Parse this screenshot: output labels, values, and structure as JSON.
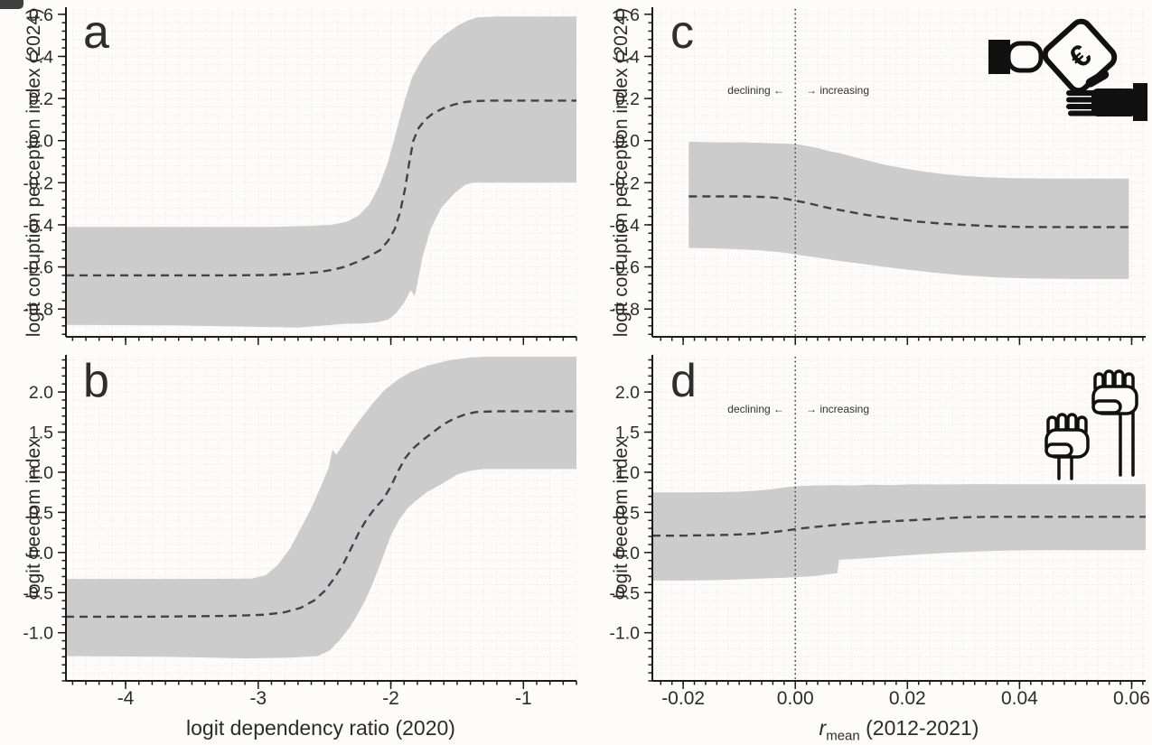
{
  "figure": {
    "background": "#fdfcfb",
    "band_color": "#c9c9c9",
    "median_color": "#42424c",
    "grid_color": "#e7e2de",
    "spine_color": "#1b1b1b",
    "text_color": "#2b2b2b"
  },
  "axes": {
    "y_title_top": "logit corruption perception index (2024)",
    "y_title_bottom": "logit freedom index",
    "x_title_left": "logit dependency ratio (2020)",
    "x_title_right": {
      "var": "r",
      "sub": "mean",
      "rest": " (2012-2021)"
    }
  },
  "annotations": {
    "left": "declining ←",
    "right": "→ increasing"
  },
  "icons": {
    "panel_c": "bribe-hands-euro-icon",
    "panel_d": "raised-fists-icon"
  },
  "chart_data": [
    {
      "id": "a",
      "panel_label": "a",
      "type": "line-with-band",
      "ylabel": "logit corruption perception index (2024)",
      "xlabel": "logit dependency ratio (2020)",
      "xlim": [
        -4.45,
        -0.6
      ],
      "ylim": [
        -0.932,
        0.625
      ],
      "xticks": [
        -4,
        -3,
        -2,
        -1
      ],
      "xtick_labels": [],
      "yticks": [
        0.6,
        0.4,
        0.2,
        0.0,
        -0.2,
        -0.4,
        -0.6,
        -0.8
      ],
      "ytick_labels": [
        "0.6",
        "0.4",
        "0.2",
        "0.0",
        "-0.2",
        "-0.4",
        "-0.6",
        "-0.8"
      ],
      "x_minor": 0.1,
      "y_minor": 0.04,
      "vline_x": null,
      "median": {
        "x": [
          -4.45,
          -3.8,
          -3.2,
          -2.9,
          -2.7,
          -2.55,
          -2.45,
          -2.35,
          -2.25,
          -2.15,
          -2.08,
          -2.02,
          -1.97,
          -1.93,
          -1.89,
          -1.86,
          -1.83,
          -1.79,
          -1.74,
          -1.68,
          -1.6,
          -1.52,
          -1.44,
          -1.36,
          -1.25,
          -1.0,
          -0.6
        ],
        "y": [
          -0.64,
          -0.64,
          -0.64,
          -0.638,
          -0.633,
          -0.625,
          -0.615,
          -0.6,
          -0.575,
          -0.545,
          -0.52,
          -0.475,
          -0.42,
          -0.34,
          -0.22,
          -0.1,
          0.0,
          0.06,
          0.1,
          0.13,
          0.155,
          0.172,
          0.183,
          0.188,
          0.19,
          0.19,
          0.19
        ]
      },
      "band_upper": {
        "x": [
          -4.45,
          -3.5,
          -2.9,
          -2.6,
          -2.45,
          -2.33,
          -2.24,
          -2.16,
          -2.09,
          -2.02,
          -1.96,
          -1.9,
          -1.84,
          -1.77,
          -1.69,
          -1.6,
          -1.5,
          -1.42,
          -1.35,
          -1.2,
          -0.9,
          -0.6
        ],
        "y": [
          -0.41,
          -0.41,
          -0.41,
          -0.405,
          -0.4,
          -0.385,
          -0.355,
          -0.3,
          -0.22,
          -0.1,
          0.04,
          0.18,
          0.3,
          0.38,
          0.45,
          0.5,
          0.545,
          0.57,
          0.585,
          0.59,
          0.59,
          0.59
        ]
      },
      "band_lower": {
        "x": [
          -4.45,
          -3.6,
          -3.0,
          -2.7,
          -2.5,
          -2.35,
          -2.2,
          -2.1,
          -2.02,
          -1.96,
          -1.9,
          -1.85,
          -1.82,
          -1.76,
          -1.7,
          -1.62,
          -1.52,
          -1.44,
          -1.38,
          -1.1,
          -0.6
        ],
        "y": [
          -0.875,
          -0.878,
          -0.885,
          -0.888,
          -0.878,
          -0.87,
          -0.868,
          -0.862,
          -0.85,
          -0.82,
          -0.77,
          -0.71,
          -0.74,
          -0.55,
          -0.42,
          -0.32,
          -0.25,
          -0.21,
          -0.2,
          -0.2,
          -0.2
        ]
      }
    },
    {
      "id": "b",
      "panel_label": "b",
      "type": "line-with-band",
      "ylabel": "logit freedom index",
      "xlabel": "logit dependency ratio (2020)",
      "xlim": [
        -4.45,
        -0.6
      ],
      "ylim": [
        -1.6,
        2.44
      ],
      "xticks": [
        -4,
        -3,
        -2,
        -1
      ],
      "xtick_labels": [
        "-4",
        "-3",
        "-2",
        "-1"
      ],
      "yticks": [
        2.0,
        1.5,
        1.0,
        0.5,
        0.0,
        -0.5,
        -1.0
      ],
      "ytick_labels": [
        "2.0",
        "1.5",
        "1.0",
        "0.5",
        "0.0",
        "-0.5",
        "-1.0"
      ],
      "x_minor": 0.1,
      "y_minor": 0.1,
      "vline_x": null,
      "median": {
        "x": [
          -4.45,
          -3.8,
          -3.2,
          -2.95,
          -2.8,
          -2.68,
          -2.58,
          -2.5,
          -2.43,
          -2.36,
          -2.3,
          -2.24,
          -2.18,
          -2.12,
          -2.06,
          -2.0,
          -1.95,
          -1.89,
          -1.83,
          -1.76,
          -1.68,
          -1.6,
          -1.52,
          -1.44,
          -1.36,
          -1.2,
          -0.9,
          -0.6
        ],
        "y": [
          -0.8,
          -0.8,
          -0.79,
          -0.775,
          -0.745,
          -0.69,
          -0.6,
          -0.48,
          -0.33,
          -0.15,
          0.05,
          0.25,
          0.42,
          0.55,
          0.66,
          0.82,
          1.0,
          1.18,
          1.3,
          1.4,
          1.5,
          1.6,
          1.67,
          1.72,
          1.75,
          1.76,
          1.76,
          1.76
        ]
      },
      "band_upper": {
        "x": [
          -4.45,
          -3.6,
          -3.05,
          -2.94,
          -2.85,
          -2.76,
          -2.68,
          -2.6,
          -2.52,
          -2.47,
          -2.44,
          -2.41,
          -2.37,
          -2.3,
          -2.22,
          -2.14,
          -2.05,
          -1.95,
          -1.85,
          -1.72,
          -1.55,
          -1.4,
          -1.28,
          -1.0,
          -0.6
        ],
        "y": [
          -0.33,
          -0.33,
          -0.325,
          -0.28,
          -0.15,
          0.05,
          0.3,
          0.55,
          0.85,
          1.05,
          1.28,
          1.22,
          1.32,
          1.5,
          1.68,
          1.85,
          2.02,
          2.15,
          2.25,
          2.33,
          2.4,
          2.43,
          2.44,
          2.44,
          2.44
        ]
      },
      "band_lower": {
        "x": [
          -4.45,
          -3.7,
          -3.1,
          -2.75,
          -2.55,
          -2.46,
          -2.38,
          -2.31,
          -2.26,
          -2.2,
          -2.14,
          -2.07,
          -2.0,
          -1.94,
          -1.87,
          -1.8,
          -1.72,
          -1.62,
          -1.5,
          -1.4,
          -1.3,
          -1.0,
          -0.6
        ],
        "y": [
          -1.29,
          -1.3,
          -1.32,
          -1.31,
          -1.29,
          -1.22,
          -1.08,
          -0.93,
          -0.8,
          -0.62,
          -0.4,
          -0.1,
          0.21,
          0.4,
          0.56,
          0.66,
          0.76,
          0.85,
          0.97,
          1.02,
          1.04,
          1.04,
          1.04
        ]
      }
    },
    {
      "id": "c",
      "panel_label": "c",
      "type": "line-with-band",
      "ylabel": "logit corruption perception index (2024)",
      "xlabel": "r_mean (2012-2021)",
      "xlim": [
        -0.0255,
        0.0625
      ],
      "ylim": [
        -0.932,
        0.625
      ],
      "xticks": [
        -0.02,
        0.0,
        0.02,
        0.04,
        0.06
      ],
      "xtick_labels": [],
      "yticks": [
        0.6,
        0.4,
        0.2,
        0.0,
        -0.2,
        -0.4,
        -0.6,
        -0.8
      ],
      "ytick_labels": [
        "0.6",
        "0.4",
        "0.2",
        "0.0",
        "-0.2",
        "-0.4",
        "-0.6",
        "-0.8"
      ],
      "x_minor": 0.002,
      "y_minor": 0.04,
      "vline_x": 0.0,
      "median": {
        "x": [
          -0.019,
          -0.014,
          -0.009,
          -0.005,
          -0.002,
          0.0,
          0.002,
          0.004,
          0.006,
          0.009,
          0.012,
          0.015,
          0.018,
          0.022,
          0.026,
          0.03,
          0.035,
          0.04,
          0.048,
          0.0595
        ],
        "y": [
          -0.265,
          -0.265,
          -0.265,
          -0.268,
          -0.275,
          -0.285,
          -0.295,
          -0.308,
          -0.32,
          -0.335,
          -0.35,
          -0.362,
          -0.372,
          -0.385,
          -0.394,
          -0.4,
          -0.406,
          -0.41,
          -0.411,
          -0.411
        ]
      },
      "band_upper": {
        "x": [
          -0.019,
          -0.014,
          -0.009,
          -0.005,
          -0.001,
          0.001,
          0.004,
          0.006,
          0.008,
          0.011,
          0.013,
          0.016,
          0.019,
          0.022,
          0.026,
          0.03,
          0.034,
          0.039,
          0.046,
          0.0595
        ],
        "y": [
          -0.005,
          -0.008,
          -0.008,
          -0.012,
          -0.015,
          -0.02,
          -0.035,
          -0.05,
          -0.06,
          -0.082,
          -0.095,
          -0.115,
          -0.13,
          -0.143,
          -0.158,
          -0.168,
          -0.174,
          -0.179,
          -0.18,
          -0.18
        ]
      },
      "band_lower": {
        "x": [
          -0.019,
          -0.014,
          -0.01,
          -0.006,
          -0.002,
          0.001,
          0.004,
          0.008,
          0.012,
          0.016,
          0.02,
          0.025,
          0.03,
          0.036,
          0.042,
          0.05,
          0.0595
        ],
        "y": [
          -0.51,
          -0.512,
          -0.516,
          -0.522,
          -0.532,
          -0.545,
          -0.556,
          -0.572,
          -0.586,
          -0.6,
          -0.613,
          -0.628,
          -0.64,
          -0.65,
          -0.655,
          -0.657,
          -0.657
        ]
      }
    },
    {
      "id": "d",
      "panel_label": "d",
      "type": "line-with-band",
      "ylabel": "logit freedom index",
      "xlabel": "r_mean (2012-2021)",
      "xlim": [
        -0.0255,
        0.0625
      ],
      "ylim": [
        -1.6,
        2.44
      ],
      "xticks": [
        -0.02,
        0.0,
        0.02,
        0.04,
        0.06
      ],
      "xtick_labels": [
        "-0.02",
        "0.00",
        "0.02",
        "0.04",
        "0.06"
      ],
      "yticks": [
        2.0,
        1.5,
        1.0,
        0.5,
        0.0,
        -0.5,
        -1.0
      ],
      "ytick_labels": [
        "2.0",
        "1.5",
        "1.0",
        "0.5",
        "0.0",
        "-0.5",
        "-1.0"
      ],
      "x_minor": 0.002,
      "y_minor": 0.1,
      "vline_x": 0.0,
      "median": {
        "x": [
          -0.0255,
          -0.02,
          -0.016,
          -0.012,
          -0.009,
          -0.006,
          -0.003,
          -0.001,
          0.001,
          0.003,
          0.006,
          0.009,
          0.012,
          0.015,
          0.018,
          0.021,
          0.025,
          0.028,
          0.031,
          0.035,
          0.04,
          0.05,
          0.0625
        ],
        "y": [
          0.21,
          0.21,
          0.215,
          0.22,
          0.228,
          0.24,
          0.262,
          0.28,
          0.3,
          0.315,
          0.335,
          0.355,
          0.37,
          0.383,
          0.393,
          0.403,
          0.418,
          0.432,
          0.44,
          0.445,
          0.445,
          0.445,
          0.445
        ]
      },
      "band_upper": {
        "x": [
          -0.0255,
          -0.019,
          -0.014,
          -0.01,
          -0.007,
          -0.004,
          -0.002,
          0.0,
          0.003,
          0.007,
          0.01,
          0.014,
          0.017,
          0.021,
          0.026,
          0.032,
          0.04,
          0.05,
          0.0625
        ],
        "y": [
          0.75,
          0.75,
          0.752,
          0.758,
          0.77,
          0.79,
          0.81,
          0.825,
          0.835,
          0.84,
          0.835,
          0.845,
          0.84,
          0.85,
          0.848,
          0.852,
          0.85,
          0.85,
          0.85
        ]
      },
      "band_lower": {
        "x": [
          -0.0255,
          -0.019,
          -0.015,
          -0.011,
          -0.008,
          -0.005,
          -0.002,
          0.001,
          0.004,
          0.006,
          0.0075,
          0.0078,
          0.011,
          0.014,
          0.018,
          0.022,
          0.027,
          0.032,
          0.038,
          0.045,
          0.055,
          0.0625
        ],
        "y": [
          -0.35,
          -0.35,
          -0.345,
          -0.338,
          -0.33,
          -0.322,
          -0.315,
          -0.305,
          -0.29,
          -0.27,
          -0.26,
          -0.09,
          -0.08,
          -0.065,
          -0.045,
          -0.025,
          -0.005,
          0.012,
          0.025,
          0.03,
          0.03,
          0.03
        ]
      }
    }
  ]
}
